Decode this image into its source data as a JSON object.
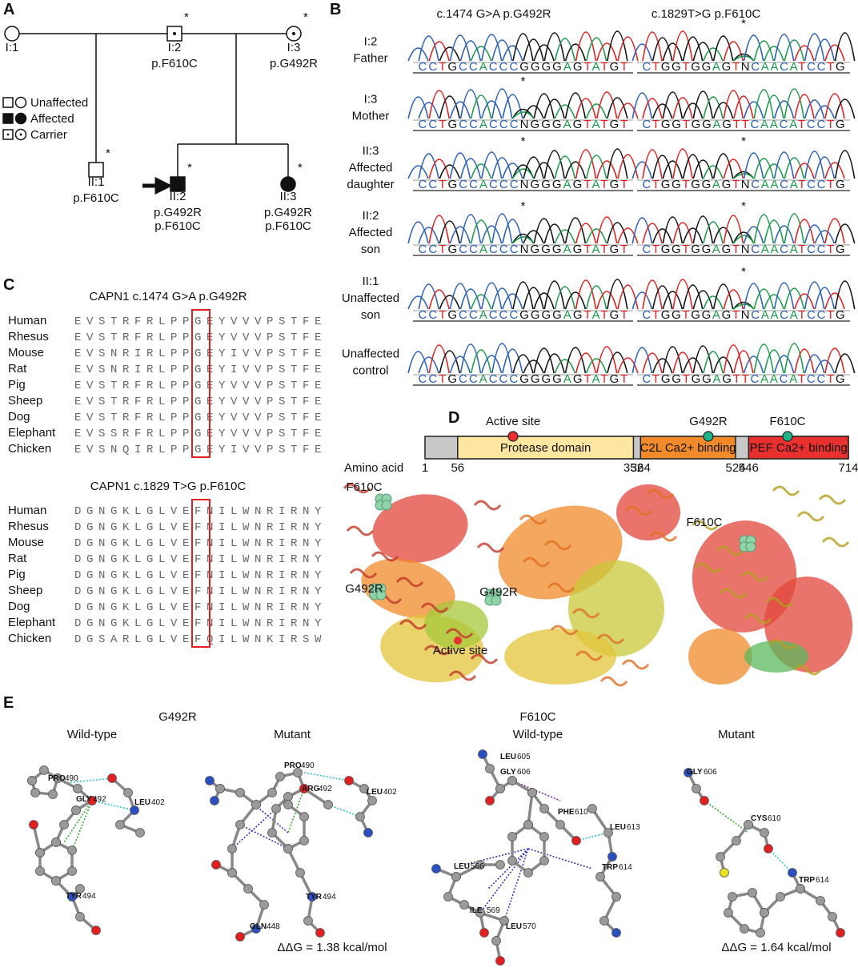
{
  "panel_a": {
    "label": "A",
    "asterisk": "*",
    "legend": [
      "Unaffected",
      "Affected",
      "Carrier"
    ],
    "individuals": [
      {
        "id": "I:1"
      },
      {
        "id": "I:2",
        "variants": [
          "p.F610C"
        ]
      },
      {
        "id": "I:3",
        "variants": [
          "p.G492R"
        ]
      },
      {
        "id": "II:1",
        "variants": [
          "p.F610C"
        ]
      },
      {
        "id": "II:2",
        "variants": [
          "p.G492R",
          "p.F610C"
        ]
      },
      {
        "id": "II:3",
        "variants": [
          "p.G492R",
          "p.F610C"
        ]
      }
    ]
  },
  "panel_b": {
    "label": "B",
    "asterisk": "*",
    "headers": [
      "c.1474 G>A  p.G492R",
      "c.1829T>G  p.F610C"
    ],
    "rows": [
      {
        "label": [
          "I:2",
          "Father"
        ],
        "left": "CCTGCCACCCGGGGAGTATGT",
        "right": "CTGGTGGAGTNCAACATCCTG"
      },
      {
        "label": [
          "I:3",
          "Mother"
        ],
        "left": "CCTGCCACCCNGGGAGTATGT",
        "right": "CTGGTGGAGTTCAACATCCTG"
      },
      {
        "label": [
          "II:3",
          "Affected",
          "daughter"
        ],
        "left": "CCTGCCACCCNGGGAGTATGT",
        "right": "CTGGTGGAGTNCAACATCCTG"
      },
      {
        "label": [
          "II:2",
          "Affected",
          "son"
        ],
        "left": "CCTGCCACCCNGGGAGTATGT",
        "right": "CTGGTGGAGTNCAACATCCTG"
      },
      {
        "label": [
          "II:1",
          "Unaffected",
          "son"
        ],
        "left": "CCTGCCACCCGGGGAGTATGT",
        "right": "CTGGTGGAGTNCAACATCCTG"
      },
      {
        "label": [
          "Unaffected",
          "control"
        ],
        "left": "CCTGCCACCCGGGGAGTATGT",
        "right": "CTGGTGGAGTTCAACATCCTG"
      }
    ]
  },
  "panel_c": {
    "label": "C",
    "alignments": [
      {
        "title": "CAPN1 c.1474 G>A  p.G492R",
        "rows": [
          {
            "species": "Human",
            "sequence": "EVSTRFRLPPGEYVVVPSTFE"
          },
          {
            "species": "Rhesus",
            "sequence": "EVSTRFRLPPGEYVVVPSTFE"
          },
          {
            "species": "Mouse",
            "sequence": "EVSNRIRLPPGEYIVVPSTFE"
          },
          {
            "species": "Rat",
            "sequence": "EVSNRIRLPPGEYIVVPSTFE"
          },
          {
            "species": "Pig",
            "sequence": "EVSTRFRLPPGEYVVVPSTFE"
          },
          {
            "species": "Sheep",
            "sequence": "EVSTRFRLPPGEYVVVPSTFE"
          },
          {
            "species": "Dog",
            "sequence": "EVSTRFRLPPGEYVVVPSTFE"
          },
          {
            "species": "Elephant",
            "sequence": "EVSSRFRLPPGEYVVVPSTFE"
          },
          {
            "species": "Chicken",
            "sequence": "EVSNQIRLPPGEYIVVPSTFE"
          }
        ]
      },
      {
        "title": "CAPN1 c.1829 T>G  p.F610C",
        "rows": [
          {
            "species": "Human",
            "sequence": "DGNGKLGLVEFNILWNRIRNY"
          },
          {
            "species": "Rhesus",
            "sequence": "DGNGKLGLVEFNILWNRIRNY"
          },
          {
            "species": "Mouse",
            "sequence": "DGNGKLGLVEFNILWNRIRNY"
          },
          {
            "species": "Rat",
            "sequence": "DGNGKLGLVEFNILWNRIRNY"
          },
          {
            "species": "Pig",
            "sequence": "DGNGKLGLVEFNILWNRIRNY"
          },
          {
            "species": "Sheep",
            "sequence": "DGNGKLGLVEFNILWNRIRNY"
          },
          {
            "species": "Dog",
            "sequence": "DGNGKLGLVEFNILWNRIRNY"
          },
          {
            "species": "Elephant",
            "sequence": "DGNGKLGLVEFNILWNRIRNY"
          },
          {
            "species": "Chicken",
            "sequence": "DGSARLGLVEFQILWNKIRSW"
          }
        ]
      }
    ]
  },
  "panel_d": {
    "label": "D",
    "axis_label": "Amino acid",
    "sites": [
      "Active site",
      "G492R",
      "F610C"
    ],
    "domains": [
      {
        "name": "Protease domain",
        "start": 56,
        "end": 352
      },
      {
        "name": "C2L Ca2+ binding",
        "start": 364,
        "end": 524
      },
      {
        "name": "PEF Ca2+ binding",
        "start": 546,
        "end": 714
      }
    ],
    "positions": [
      1,
      56,
      352,
      364,
      524,
      546,
      714
    ],
    "structure_labels": [
      "F610C",
      "G492R",
      "Active site",
      "G492R",
      "F610C"
    ]
  },
  "panel_e": {
    "label": "E",
    "groups": [
      {
        "title": "G492R",
        "panels": [
          {
            "title": "Wild-type",
            "residues": [
              {
                "name": "PRO",
                "number": 490
              },
              {
                "name": "GLY",
                "number": 492
              },
              {
                "name": "LEU",
                "number": 402
              },
              {
                "name": "TYR",
                "number": 494
              }
            ]
          },
          {
            "title": "Mutant",
            "residues": [
              {
                "name": "PRO",
                "number": 490
              },
              {
                "name": "ARG",
                "number": 492
              },
              {
                "name": "LEU",
                "number": 402
              },
              {
                "name": "GLN",
                "number": 448
              },
              {
                "name": "TYR",
                "number": 494
              }
            ],
            "ddg": "ΔΔG = 1.38 kcal/mol"
          }
        ]
      },
      {
        "title": "F610C",
        "panels": [
          {
            "title": "Wild-type",
            "residues": [
              {
                "name": "LEU",
                "number": 605
              },
              {
                "name": "GLY",
                "number": 606
              },
              {
                "name": "PHE",
                "number": 610
              },
              {
                "name": "LEU",
                "number": 613
              },
              {
                "name": "LEU",
                "number": 566
              },
              {
                "name": "TRP",
                "number": 614
              },
              {
                "name": "ILE",
                "number": 569
              },
              {
                "name": "LEU",
                "number": 570
              }
            ]
          },
          {
            "title": "Mutant",
            "residues": [
              {
                "name": "GLY",
                "number": 606
              },
              {
                "name": "CYS",
                "number": 610
              },
              {
                "name": "TRP",
                "number": 614
              }
            ],
            "ddg": "ΔΔG = 1.64 kcal/mol"
          }
        ]
      }
    ]
  }
}
